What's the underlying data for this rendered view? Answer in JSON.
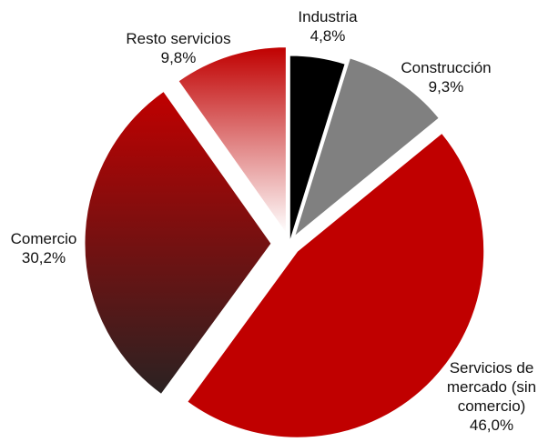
{
  "chart_data": {
    "type": "pie",
    "title": "",
    "categories": [
      "Industria",
      "Construcción",
      "Servicios de mercado (sin comercio)",
      "Comercio",
      "Resto servicios"
    ],
    "values": [
      4.8,
      9.3,
      46.0,
      30.2,
      9.8
    ],
    "value_labels": [
      "4,8%",
      "9,3%",
      "46,0%",
      "30,2%",
      "9,8%"
    ],
    "label_lines": [
      [
        "Industria",
        "4,8%"
      ],
      [
        "Construcción",
        "9,3%"
      ],
      [
        "Servicios de",
        "mercado (sin",
        "comercio)",
        "46,0%"
      ],
      [
        "Comercio",
        "30,2%"
      ],
      [
        "Resto servicios",
        "9,8%"
      ]
    ],
    "colors": [
      "#000000",
      "#808080",
      "#c00000",
      "#8b0a0a",
      "#c00000"
    ],
    "fill_style": [
      "solid",
      "solid",
      "solid",
      "gradient-red-to-dark",
      "gradient-red-to-white"
    ],
    "exploded": true,
    "start_angle": "top",
    "direction": "clockwise",
    "legend": "none"
  }
}
